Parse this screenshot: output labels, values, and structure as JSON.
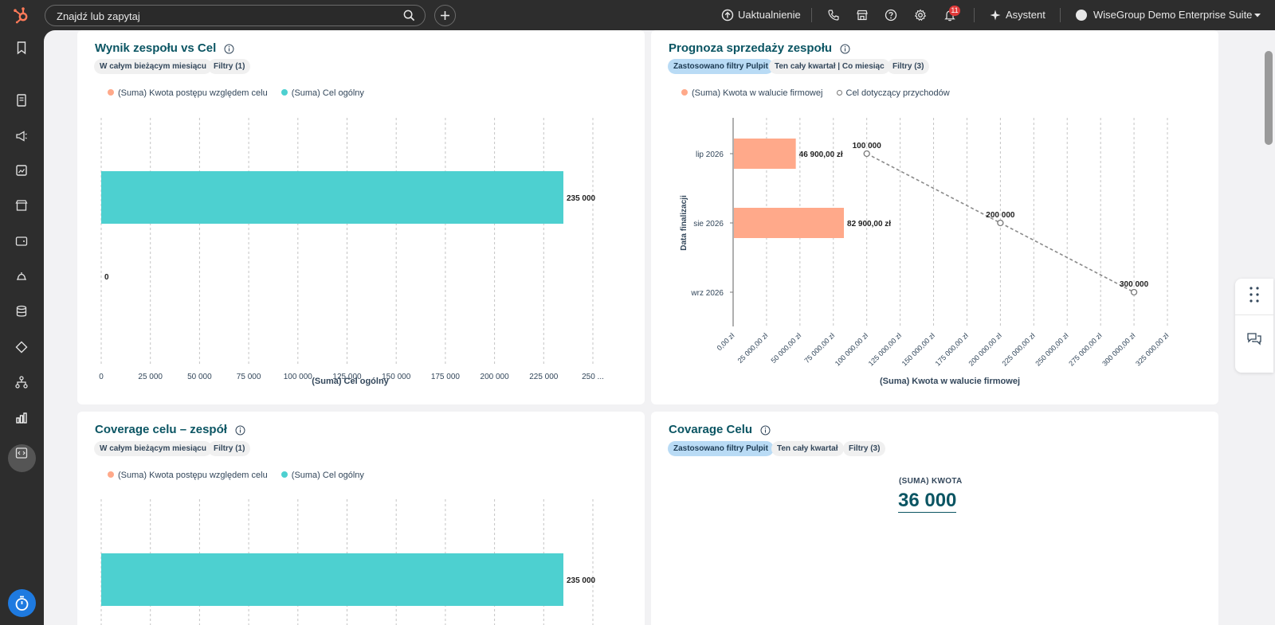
{
  "topbar": {
    "search_placeholder": "Znajdź lub zapytaj",
    "upgrade_label": "Uaktualnienie",
    "notifications_count": "11",
    "assistant_label": "Asystent",
    "account_name": "WiseGroup Demo Enterprise Suite"
  },
  "cards": {
    "team_vs_goal": {
      "title": "Wynik zespołu vs Cel",
      "chips": [
        "W całym bieżącym miesiącu",
        "Filtry (1)"
      ],
      "legend": [
        "(Suma) Kwota postępu względem celu",
        "(Suma) Cel ogólny"
      ]
    },
    "forecast": {
      "title": "Prognoza sprzedaży zespołu",
      "chips": [
        "Zastosowano filtry Pulpit",
        "Ten cały kwartał | Co miesiąc",
        "Filtry (3)"
      ],
      "legend": [
        "(Suma) Kwota w walucie firmowej",
        "Cel dotyczący przychodów"
      ]
    },
    "coverage_team": {
      "title": "Coverage celu – zespół",
      "chips": [
        "W całym bieżącym miesiącu",
        "Filtry (1)"
      ],
      "legend": [
        "(Suma) Kwota postępu względem celu",
        "(Suma) Cel ogólny"
      ]
    },
    "coverage_goal": {
      "title": "Covarage Celu",
      "chips": [
        "Zastosowano filtry Pulpit",
        "Ten cały kwartał",
        "Filtry (3)"
      ],
      "kpi_label": "(SUMA) KWOTA",
      "kpi_value": "36 000"
    }
  },
  "colors": {
    "teal": "#4dd0d0",
    "salmon": "#ffa98a",
    "title": "#0b5563",
    "accent_blue": "#1e7ae0"
  },
  "chart_data": [
    {
      "type": "bar",
      "orientation": "horizontal",
      "series": [
        {
          "name": "(Suma) Kwota postępu względem celu",
          "values": [
            0
          ]
        },
        {
          "name": "(Suma) Cel ogólny",
          "values": [
            235000
          ]
        }
      ],
      "data_labels": [
        "0",
        "235 000"
      ],
      "xlabel": "(Suma) Cel ogólny",
      "xticks": [
        "0",
        "25 000",
        "50 000",
        "75 000",
        "100 000",
        "125 000",
        "150 000",
        "175 000",
        "200 000",
        "225 000",
        "250 ..."
      ],
      "xlim": [
        0,
        250000
      ],
      "grid": true,
      "legend": "top-left"
    },
    {
      "type": "bar",
      "orientation": "horizontal",
      "categories": [
        "lip 2026",
        "sie 2026",
        "wrz 2026"
      ],
      "series": [
        {
          "name": "(Suma) Kwota w walucie firmowej",
          "values": [
            46900,
            82900,
            0
          ],
          "labels": [
            "46 900,00 zł",
            "82 900,00 zł",
            ""
          ]
        },
        {
          "name": "Cel dotyczący przychodów",
          "type": "line",
          "values": [
            100000,
            200000,
            300000
          ],
          "labels": [
            "100 000",
            "200 000",
            "300 000"
          ]
        }
      ],
      "xlabel": "(Suma) Kwota w walucie firmowej",
      "ylabel": "Data finalizacji",
      "xticks": [
        "0,00 zł",
        "25 000,00 zł",
        "50 000,00 zł",
        "75 000,00 zł",
        "100 000,00 zł",
        "125 000,00 zł",
        "150 000,00 zł",
        "175 000,00 zł",
        "200 000,00 zł",
        "225 000,00 zł",
        "250 000,00 zł",
        "275 000,00 zł",
        "300 000,00 zł",
        "325 000,00 zł"
      ],
      "xlim": [
        0,
        325000
      ],
      "grid": true,
      "legend": "top-left"
    },
    {
      "type": "bar",
      "orientation": "horizontal",
      "series": [
        {
          "name": "(Suma) Cel ogólny",
          "values": [
            235000
          ]
        }
      ],
      "data_labels": [
        "235 000"
      ],
      "xlim": [
        0,
        250000
      ],
      "grid": true,
      "legend": "top-left"
    }
  ]
}
